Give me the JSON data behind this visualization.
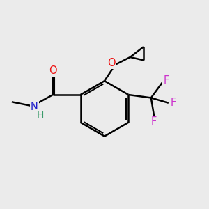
{
  "background_color": "#ebebeb",
  "bond_color": "#000000",
  "atom_colors": {
    "O": "#ee1111",
    "N": "#2222cc",
    "H": "#3a9a6a",
    "F": "#cc33cc",
    "C": "#000000"
  },
  "figsize": [
    3.0,
    3.0
  ],
  "dpi": 100
}
